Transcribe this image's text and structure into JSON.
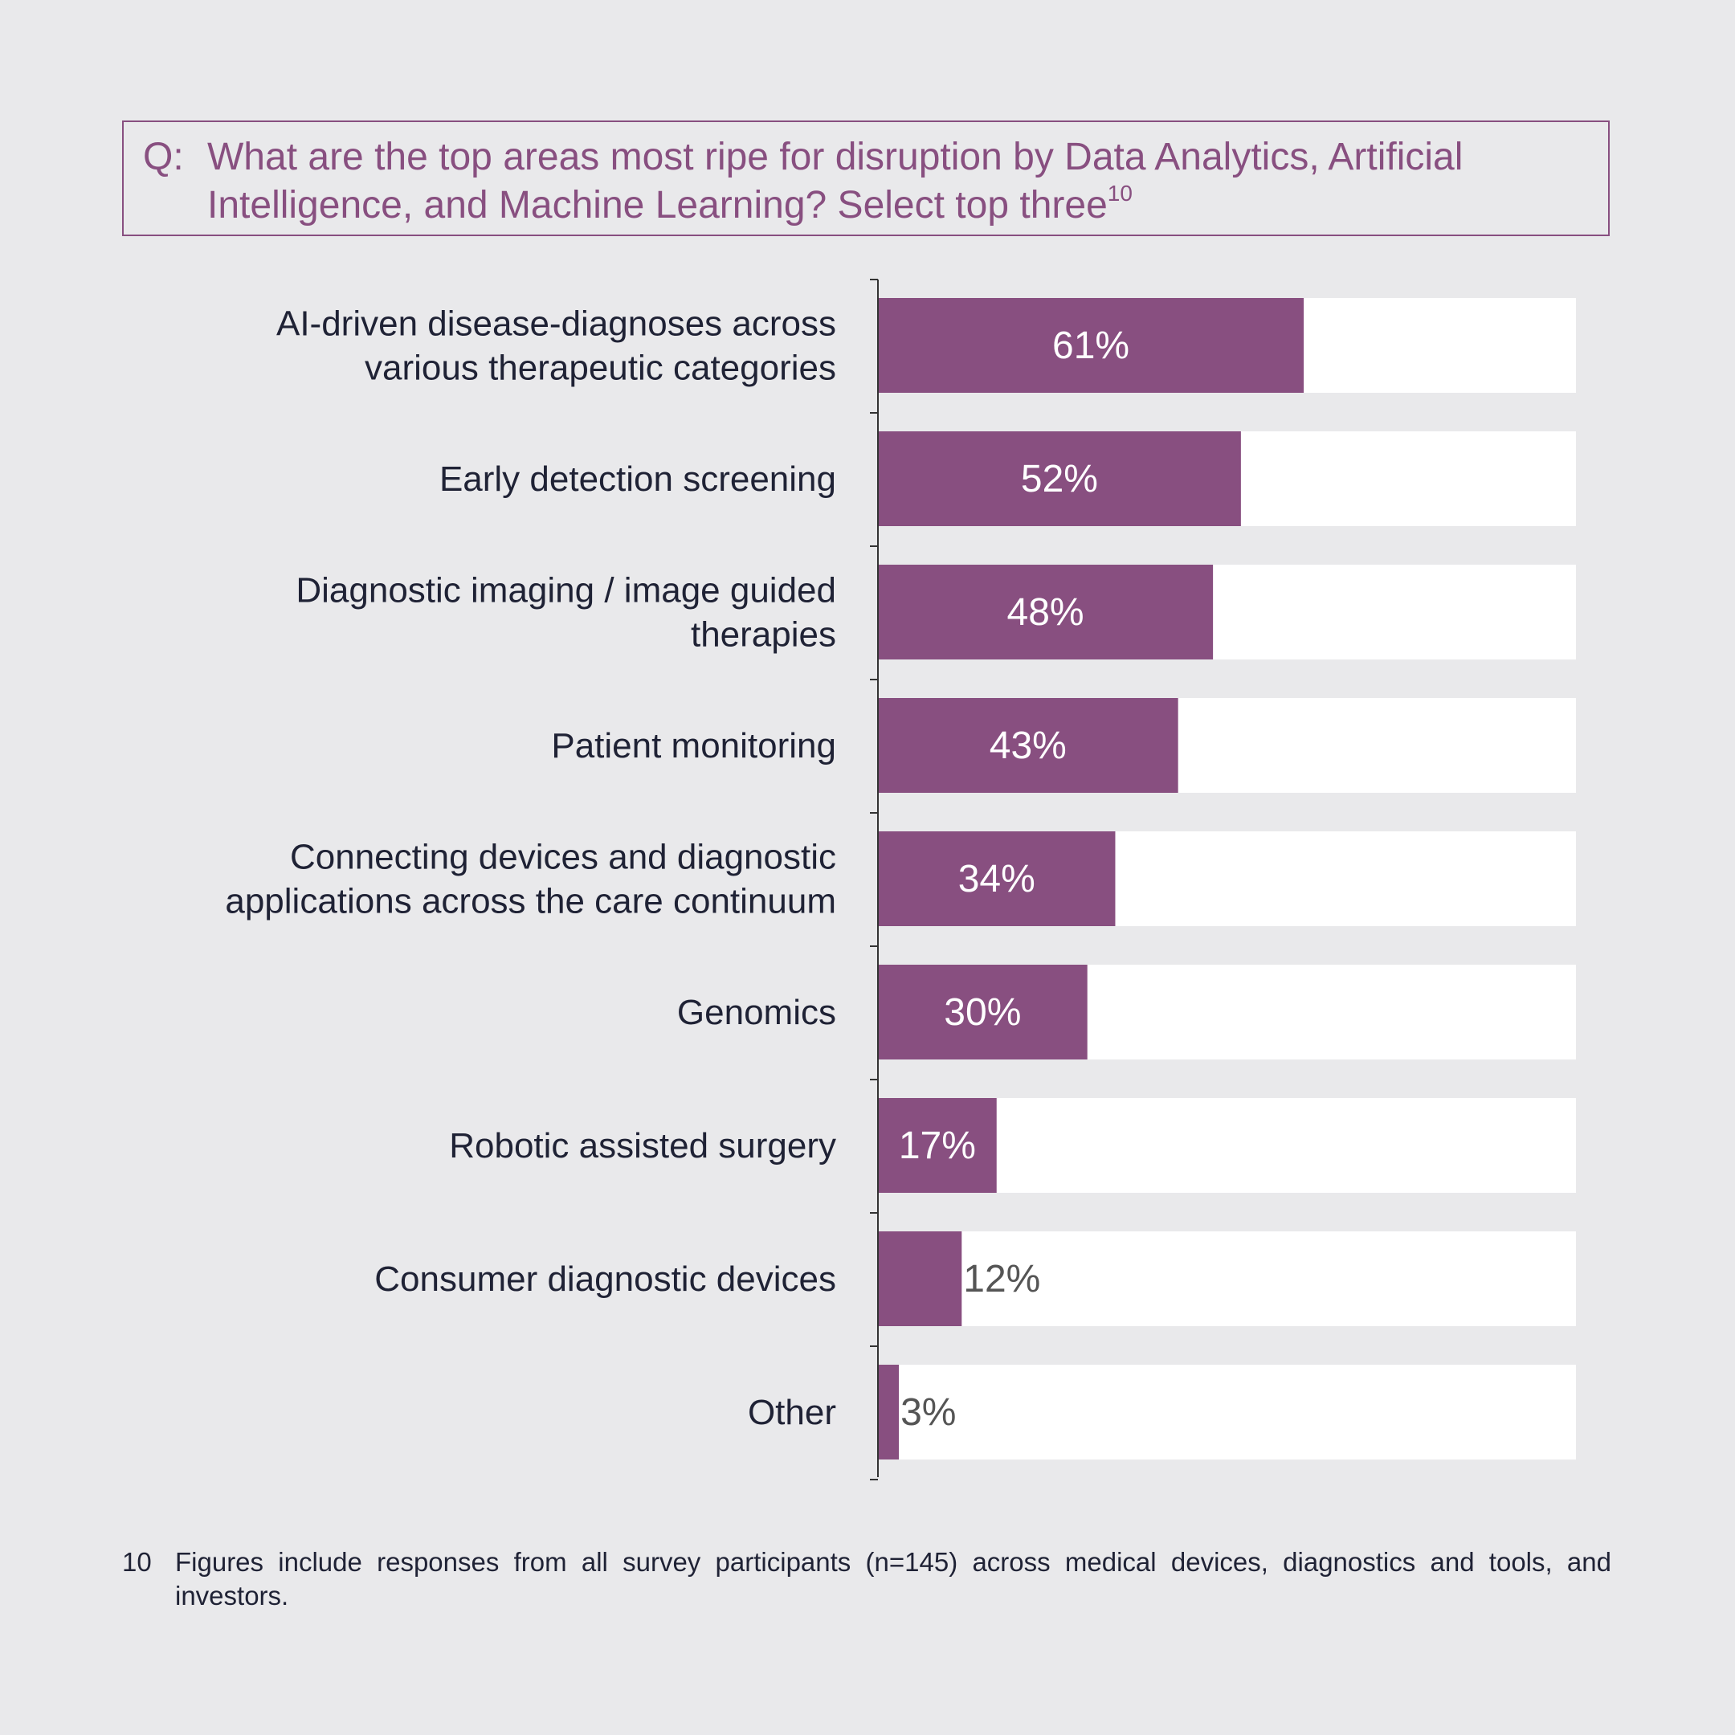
{
  "question": {
    "prefix": "Q:",
    "text": "What are the top areas most ripe for disruption by Data Analytics, Artificial Intelligence, and Machine Learning? Select top three",
    "footnote_ref": "10"
  },
  "chart_data": {
    "type": "bar",
    "orientation": "horizontal",
    "categories": [
      "AI-driven disease-diagnoses across various therapeutic categories",
      "Early detection screening",
      "Diagnostic imaging / image guided therapies",
      "Patient monitoring",
      "Connecting devices and diagnostic applications across the care continuum",
      "Genomics",
      "Robotic assisted surgery",
      "Consumer diagnostic devices",
      "Other"
    ],
    "category_lines": [
      [
        "AI-driven disease-diagnoses across",
        "various therapeutic categories"
      ],
      [
        "Early detection screening"
      ],
      [
        "Diagnostic imaging / image guided",
        "therapies"
      ],
      [
        "Patient monitoring"
      ],
      [
        "Connecting devices and diagnostic",
        "applications across the care continuum"
      ],
      [
        "Genomics"
      ],
      [
        "Robotic assisted surgery"
      ],
      [
        "Consumer diagnostic devices"
      ],
      [
        "Other"
      ]
    ],
    "values": [
      61,
      52,
      48,
      43,
      34,
      30,
      17,
      12,
      3
    ],
    "labels": [
      "61%",
      "52%",
      "48%",
      "43%",
      "34%",
      "30%",
      "17%",
      "12%",
      "3%"
    ],
    "xlim": [
      0,
      100
    ],
    "grid": false,
    "legend": "none",
    "colors": {
      "bar": "#884f80",
      "track": "#ffffff",
      "label_inside": "#ffffff",
      "label_outside": "#555555",
      "category_text": "#1f2235",
      "axis": "#333333"
    }
  },
  "footnote": {
    "number": "10",
    "text": "Figures include responses from all survey participants (n=145) across medical devices, diagnostics and tools, and investors."
  }
}
